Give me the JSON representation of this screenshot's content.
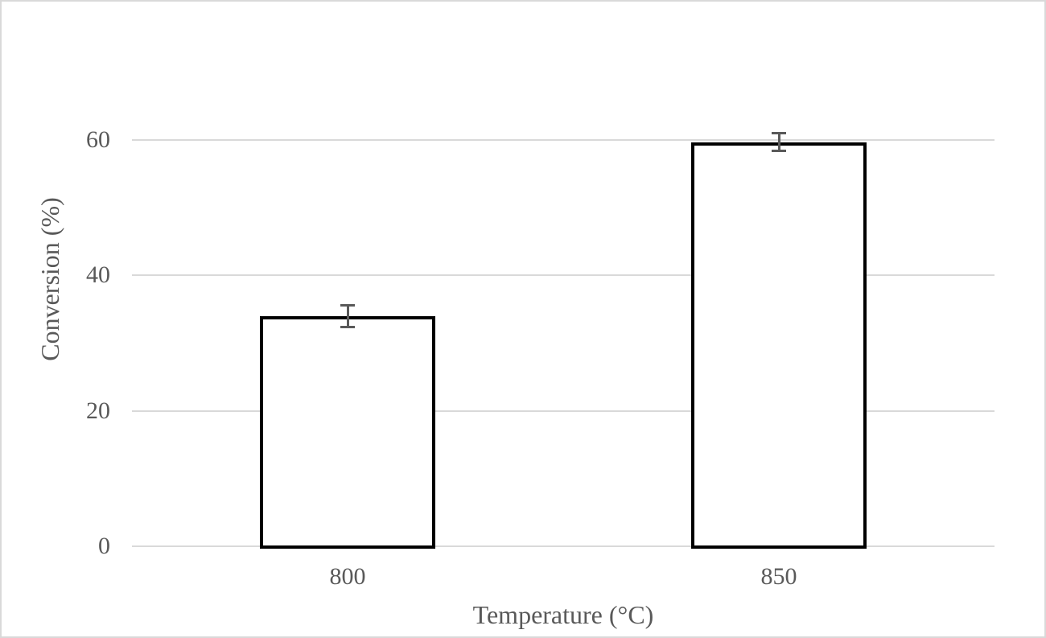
{
  "figure": {
    "background": "#FFFFFF",
    "border_color": "#D9D9D9"
  },
  "chart_data": {
    "type": "bar",
    "title": "",
    "xlabel": "Temperature (°C)",
    "ylabel": "Conversion (%)",
    "categories": [
      "800",
      "850"
    ],
    "values": [
      34,
      59.7
    ],
    "error_bars": [
      1.8,
      1.5
    ],
    "yticks": [
      0,
      20,
      40,
      60
    ],
    "ylim": [
      0,
      70
    ],
    "grid": "horizontal-gridlines",
    "legend": "none",
    "colors": {
      "bar_fill": "#FFFFFF",
      "bar_border": "#000000",
      "gridline": "#D9D9D9",
      "axis_text": "#595959",
      "error_bar": "#595959"
    }
  }
}
